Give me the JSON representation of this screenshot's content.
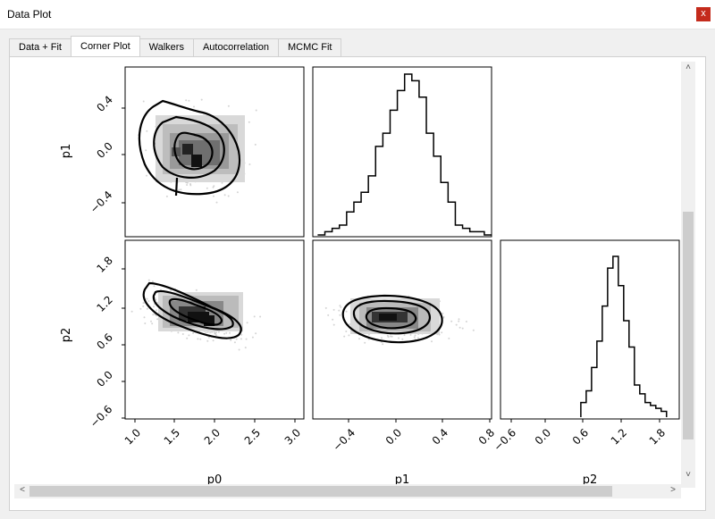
{
  "window": {
    "title": "Data Plot",
    "close_label": "x"
  },
  "tabs": [
    {
      "label": "Data + Fit",
      "active": false
    },
    {
      "label": "Corner Plot",
      "active": true
    },
    {
      "label": "Walkers",
      "active": false
    },
    {
      "label": "Autocorrelation",
      "active": false
    },
    {
      "label": "MCMC Fit",
      "active": false
    }
  ],
  "scroll": {
    "up_arrow": "˄",
    "down_arrow": "˅",
    "left_arrow": "<",
    "right_arrow": ">",
    "vertical_fraction": 0.74,
    "horizontal_fraction": 0.0
  },
  "chart_data": {
    "type": "corner",
    "parameters": [
      "p0",
      "p1",
      "p2"
    ],
    "axes": {
      "p0": {
        "ticks": [
          "1.0",
          "1.5",
          "2.0",
          "2.5",
          "3.0"
        ]
      },
      "p1": {
        "ticks": [
          "−0.4",
          "0.0",
          "0.4",
          "0.8"
        ],
        "tick_labels_y": [
          "−0.4",
          "0.0",
          "0.4"
        ]
      },
      "p2": {
        "ticks": [
          "−0.6",
          "0.0",
          "0.6",
          "1.2",
          "1.8"
        ],
        "tick_labels_y": [
          "1.8",
          "1.2",
          "0.6",
          "0.0",
          "−0.6"
        ]
      }
    },
    "hist_p1": {
      "bin_edges": [
        -0.68,
        -0.62,
        -0.56,
        -0.5,
        -0.44,
        -0.38,
        -0.32,
        -0.26,
        -0.2,
        -0.14,
        -0.08,
        -0.02,
        0.04,
        0.1,
        0.16,
        0.22,
        0.28,
        0.34,
        0.4,
        0.46,
        0.52,
        0.58,
        0.64,
        0.7,
        0.76
      ],
      "counts": [
        0,
        1,
        2,
        3,
        7,
        10,
        13,
        18,
        27,
        31,
        38,
        44,
        49,
        47,
        42,
        31,
        24,
        16,
        10,
        3,
        2,
        1,
        1,
        0
      ]
    },
    "hist_p2": {
      "bin_edges": [
        0.48,
        0.56,
        0.64,
        0.72,
        0.8,
        0.88,
        0.96,
        1.04,
        1.12,
        1.2,
        1.28,
        1.36,
        1.44,
        1.52,
        1.6,
        1.68,
        1.76
      ],
      "counts": [
        5,
        9,
        17,
        26,
        38,
        51,
        55,
        45,
        33,
        24,
        11,
        8,
        5,
        4,
        3,
        2
      ]
    }
  }
}
